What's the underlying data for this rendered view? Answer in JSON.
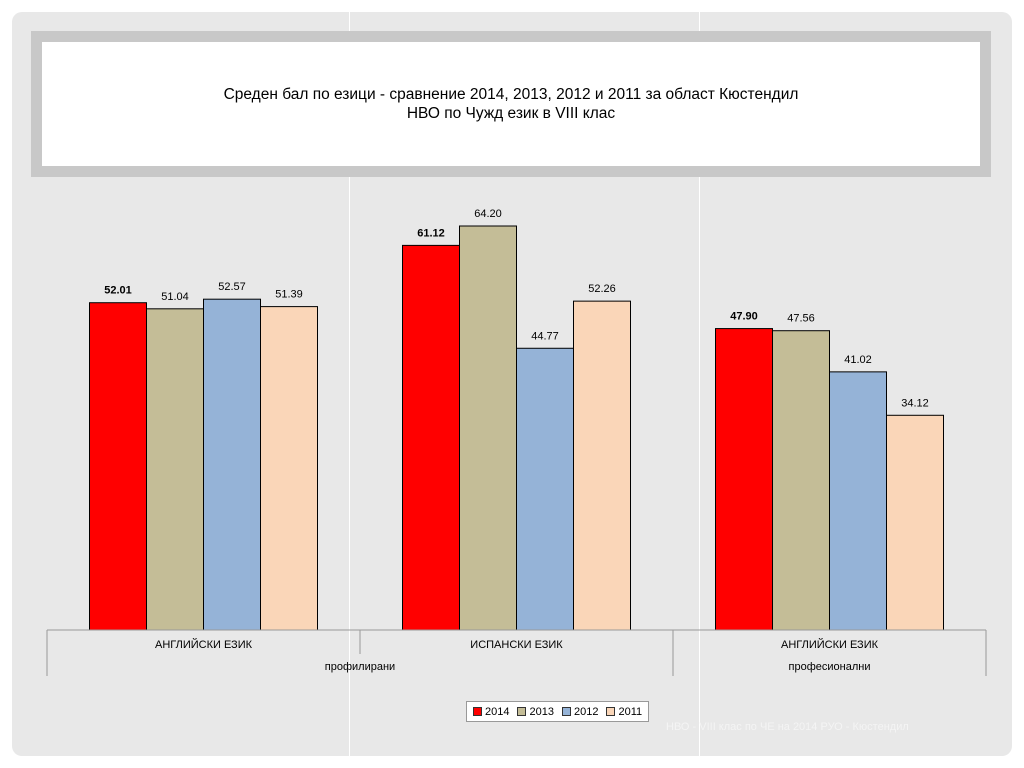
{
  "title": {
    "line1": "Среден бал по езици - сравнение 2014, 2013, 2012 и 2011 за област Кюстендил",
    "line2": "НВО по Чужд език в VIII клас"
  },
  "footer_text": "НВО - VIII клас по ЧЕ на 2014 РУО - Кюстендил",
  "colors": {
    "s2014": "#ff0000",
    "s2013": "#c4bd97",
    "s2012": "#95b3d7",
    "s2011": "#fad6b8",
    "bar_border": "#000000"
  },
  "chart_data": {
    "type": "bar",
    "title": "Среден бал по езици - сравнение 2014, 2013, 2012 и 2011 за област Кюстендил НВО по Чужд език в VIII клас",
    "categories": [
      "АНГЛИЙСКИ ЕЗИК",
      "ИСПАНСКИ ЕЗИК",
      "АНГЛИЙСКИ ЕЗИК"
    ],
    "groups": [
      {
        "label": "профилирани",
        "span": [
          0,
          1
        ]
      },
      {
        "label": "професионални",
        "span": [
          2,
          2
        ]
      }
    ],
    "series": [
      {
        "name": "2014",
        "values": [
          52.01,
          61.12,
          47.9
        ],
        "labels": [
          "52.01",
          "61.12",
          "47.90"
        ],
        "bold": true
      },
      {
        "name": "2013",
        "values": [
          51.04,
          64.2,
          47.56
        ],
        "labels": [
          "51.04",
          "64.20",
          "47.56"
        ]
      },
      {
        "name": "2012",
        "values": [
          52.57,
          44.77,
          41.02
        ],
        "labels": [
          "52.57",
          "44.77",
          "41.02"
        ]
      },
      {
        "name": "2011",
        "values": [
          51.39,
          52.26,
          34.12
        ],
        "labels": [
          "51.39",
          "52.26",
          "34.12"
        ]
      }
    ],
    "ylim": [
      0,
      100
    ],
    "yaxis_visible": false,
    "grid": false,
    "legend": "bottom-center",
    "xlabel": "",
    "ylabel": ""
  }
}
